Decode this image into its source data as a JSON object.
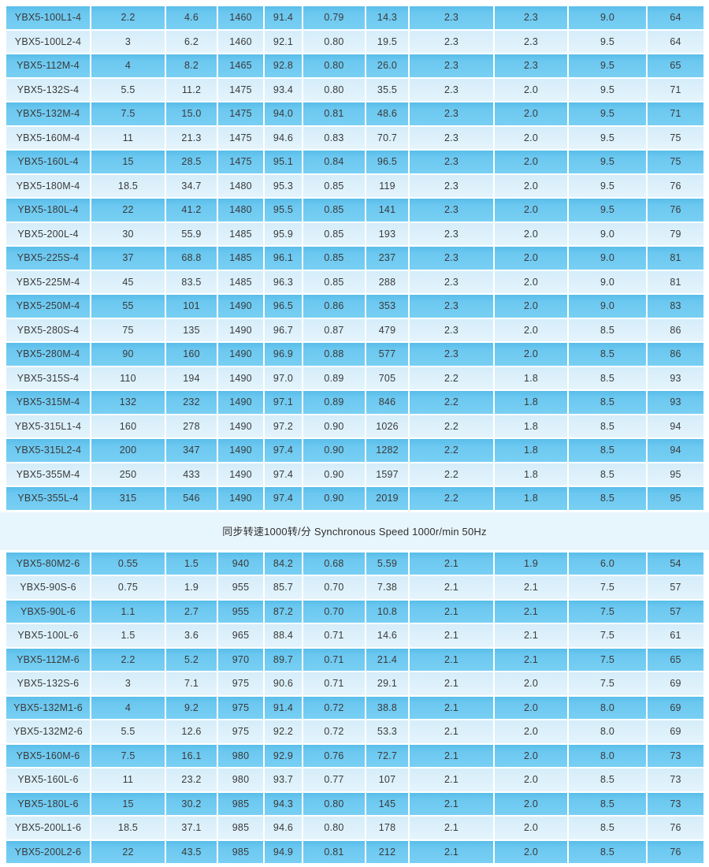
{
  "colors": {
    "row_dark": "#6CC8F0",
    "row_light": "#DEF1FB",
    "separator_band": "#E7F5FC",
    "divider": "#FFFFFF",
    "text": "#3A3A3A"
  },
  "table": {
    "separator_label": "同步转速1000转/分 Synchronous Speed 1000r/min 50Hz",
    "sections": [
      {
        "name": "speed-1500rmin-4pole",
        "rows": [
          [
            "YBX5-100L1-4",
            "2.2",
            "4.6",
            "1460",
            "91.4",
            "0.79",
            "14.3",
            "2.3",
            "2.3",
            "9.0",
            "64"
          ],
          [
            "YBX5-100L2-4",
            "3",
            "6.2",
            "1460",
            "92.1",
            "0.80",
            "19.5",
            "2.3",
            "2.3",
            "9.5",
            "64"
          ],
          [
            "YBX5-112M-4",
            "4",
            "8.2",
            "1465",
            "92.8",
            "0.80",
            "26.0",
            "2.3",
            "2.3",
            "9.5",
            "65"
          ],
          [
            "YBX5-132S-4",
            "5.5",
            "11.2",
            "1475",
            "93.4",
            "0.80",
            "35.5",
            "2.3",
            "2.0",
            "9.5",
            "71"
          ],
          [
            "YBX5-132M-4",
            "7.5",
            "15.0",
            "1475",
            "94.0",
            "0.81",
            "48.6",
            "2.3",
            "2.0",
            "9.5",
            "71"
          ],
          [
            "YBX5-160M-4",
            "11",
            "21.3",
            "1475",
            "94.6",
            "0.83",
            "70.7",
            "2.3",
            "2.0",
            "9.5",
            "75"
          ],
          [
            "YBX5-160L-4",
            "15",
            "28.5",
            "1475",
            "95.1",
            "0.84",
            "96.5",
            "2.3",
            "2.0",
            "9.5",
            "75"
          ],
          [
            "YBX5-180M-4",
            "18.5",
            "34.7",
            "1480",
            "95.3",
            "0.85",
            "119",
            "2.3",
            "2.0",
            "9.5",
            "76"
          ],
          [
            "YBX5-180L-4",
            "22",
            "41.2",
            "1480",
            "95.5",
            "0.85",
            "141",
            "2.3",
            "2.0",
            "9.5",
            "76"
          ],
          [
            "YBX5-200L-4",
            "30",
            "55.9",
            "1485",
            "95.9",
            "0.85",
            "193",
            "2.3",
            "2.0",
            "9.0",
            "79"
          ],
          [
            "YBX5-225S-4",
            "37",
            "68.8",
            "1485",
            "96.1",
            "0.85",
            "237",
            "2.3",
            "2.0",
            "9.0",
            "81"
          ],
          [
            "YBX5-225M-4",
            "45",
            "83.5",
            "1485",
            "96.3",
            "0.85",
            "288",
            "2.3",
            "2.0",
            "9.0",
            "81"
          ],
          [
            "YBX5-250M-4",
            "55",
            "101",
            "1490",
            "96.5",
            "0.86",
            "353",
            "2.3",
            "2.0",
            "9.0",
            "83"
          ],
          [
            "YBX5-280S-4",
            "75",
            "135",
            "1490",
            "96.7",
            "0.87",
            "479",
            "2.3",
            "2.0",
            "8.5",
            "86"
          ],
          [
            "YBX5-280M-4",
            "90",
            "160",
            "1490",
            "96.9",
            "0.88",
            "577",
            "2.3",
            "2.0",
            "8.5",
            "86"
          ],
          [
            "YBX5-315S-4",
            "110",
            "194",
            "1490",
            "97.0",
            "0.89",
            "705",
            "2.2",
            "1.8",
            "8.5",
            "93"
          ],
          [
            "YBX5-315M-4",
            "132",
            "232",
            "1490",
            "97.1",
            "0.89",
            "846",
            "2.2",
            "1.8",
            "8.5",
            "93"
          ],
          [
            "YBX5-315L1-4",
            "160",
            "278",
            "1490",
            "97.2",
            "0.90",
            "1026",
            "2.2",
            "1.8",
            "8.5",
            "94"
          ],
          [
            "YBX5-315L2-4",
            "200",
            "347",
            "1490",
            "97.4",
            "0.90",
            "1282",
            "2.2",
            "1.8",
            "8.5",
            "94"
          ],
          [
            "YBX5-355M-4",
            "250",
            "433",
            "1490",
            "97.4",
            "0.90",
            "1597",
            "2.2",
            "1.8",
            "8.5",
            "95"
          ],
          [
            "YBX5-355L-4",
            "315",
            "546",
            "1490",
            "97.4",
            "0.90",
            "2019",
            "2.2",
            "1.8",
            "8.5",
            "95"
          ]
        ]
      },
      {
        "name": "speed-1000rmin-6pole",
        "rows": [
          [
            "YBX5-80M2-6",
            "0.55",
            "1.5",
            "940",
            "84.2",
            "0.68",
            "5.59",
            "2.1",
            "1.9",
            "6.0",
            "54"
          ],
          [
            "YBX5-90S-6",
            "0.75",
            "1.9",
            "955",
            "85.7",
            "0.70",
            "7.38",
            "2.1",
            "2.1",
            "7.5",
            "57"
          ],
          [
            "YBX5-90L-6",
            "1.1",
            "2.7",
            "955",
            "87.2",
            "0.70",
            "10.8",
            "2.1",
            "2.1",
            "7.5",
            "57"
          ],
          [
            "YBX5-100L-6",
            "1.5",
            "3.6",
            "965",
            "88.4",
            "0.71",
            "14.6",
            "2.1",
            "2.1",
            "7.5",
            "61"
          ],
          [
            "YBX5-112M-6",
            "2.2",
            "5.2",
            "970",
            "89.7",
            "0.71",
            "21.4",
            "2.1",
            "2.1",
            "7.5",
            "65"
          ],
          [
            "YBX5-132S-6",
            "3",
            "7.1",
            "975",
            "90.6",
            "0.71",
            "29.1",
            "2.1",
            "2.0",
            "7.5",
            "69"
          ],
          [
            "YBX5-132M1-6",
            "4",
            "9.2",
            "975",
            "91.4",
            "0.72",
            "38.8",
            "2.1",
            "2.0",
            "8.0",
            "69"
          ],
          [
            "YBX5-132M2-6",
            "5.5",
            "12.6",
            "975",
            "92.2",
            "0.72",
            "53.3",
            "2.1",
            "2.0",
            "8.0",
            "69"
          ],
          [
            "YBX5-160M-6",
            "7.5",
            "16.1",
            "980",
            "92.9",
            "0.76",
            "72.7",
            "2.1",
            "2.0",
            "8.0",
            "73"
          ],
          [
            "YBX5-160L-6",
            "11",
            "23.2",
            "980",
            "93.7",
            "0.77",
            "107",
            "2.1",
            "2.0",
            "8.5",
            "73"
          ],
          [
            "YBX5-180L-6",
            "15",
            "30.2",
            "985",
            "94.3",
            "0.80",
            "145",
            "2.1",
            "2.0",
            "8.5",
            "73"
          ],
          [
            "YBX5-200L1-6",
            "18.5",
            "37.1",
            "985",
            "94.6",
            "0.80",
            "178",
            "2.1",
            "2.0",
            "8.5",
            "76"
          ],
          [
            "YBX5-200L2-6",
            "22",
            "43.5",
            "985",
            "94.9",
            "0.81",
            "212",
            "2.1",
            "2.0",
            "8.5",
            "76"
          ]
        ]
      }
    ]
  }
}
